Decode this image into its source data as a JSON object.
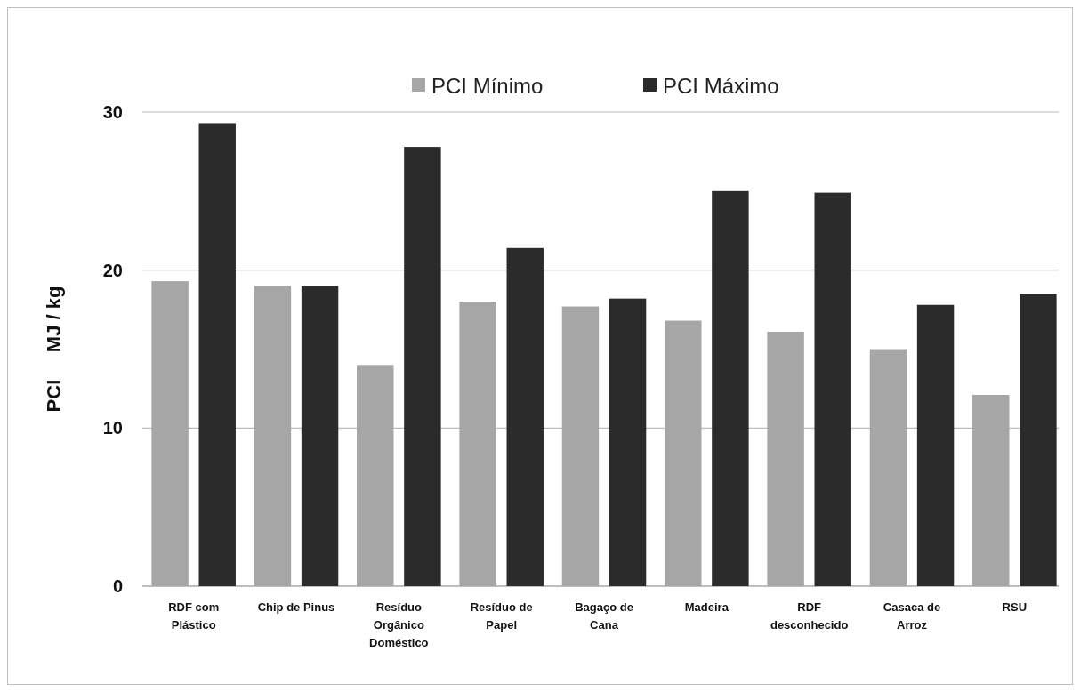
{
  "chart_data": {
    "type": "bar",
    "ylabel": "PCI     MJ / kg",
    "categories": [
      "RDF com Plástico",
      "Chip de Pinus",
      "Resíduo Orgânico Doméstico",
      "Resíduo de Papel",
      "Bagaço de Cana",
      "Madeira",
      "RDF desconhecido",
      "Casaca de Arroz",
      "RSU"
    ],
    "series": [
      {
        "name": "PCI Mínimo",
        "color": "#a6a6a6",
        "values": [
          19.3,
          19.0,
          14.0,
          18.0,
          17.7,
          16.8,
          16.1,
          15.0,
          12.1
        ]
      },
      {
        "name": "PCI Máximo",
        "color": "#2b2b2b",
        "values": [
          29.3,
          19.0,
          27.8,
          21.4,
          18.2,
          25.0,
          24.9,
          17.8,
          18.5
        ]
      }
    ],
    "ylim": [
      0,
      30
    ],
    "yticks": [
      0,
      10,
      20,
      30
    ],
    "grid": "y",
    "legend": "top"
  }
}
